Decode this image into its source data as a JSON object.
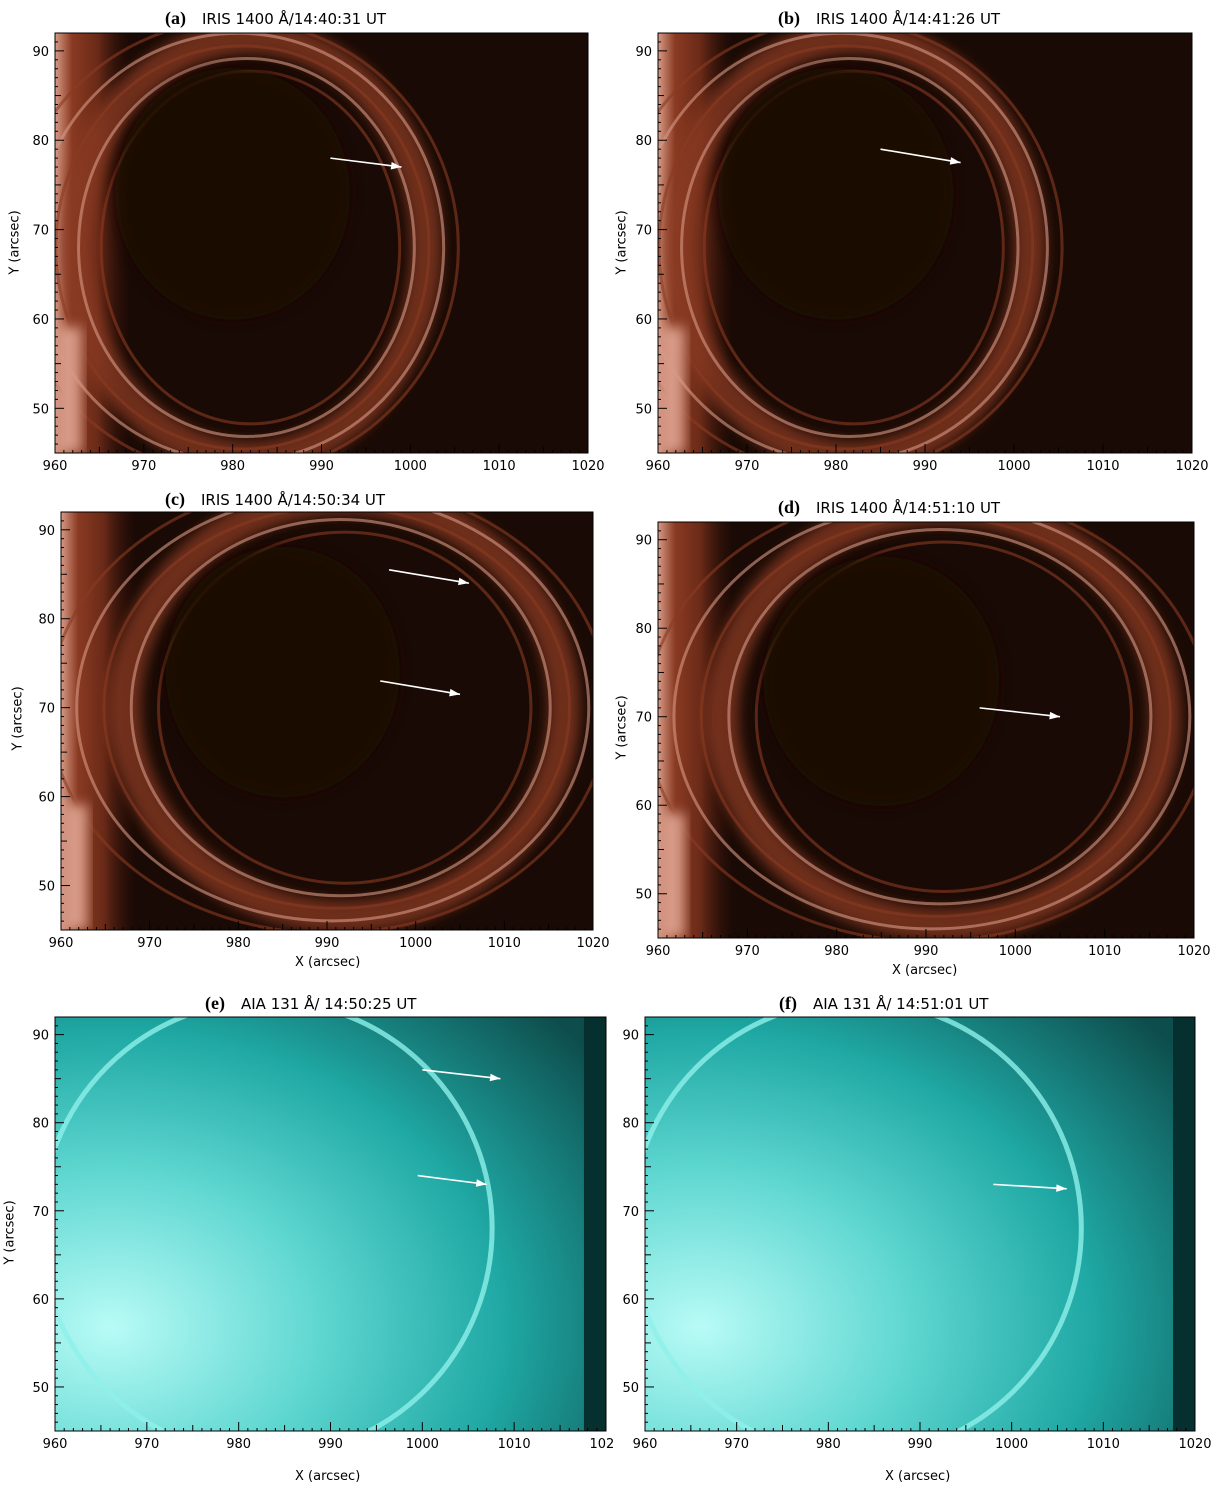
{
  "colors": {
    "iris_bg": "#1a0a05",
    "iris_dark": "#2a0d06",
    "iris_mid": "#8a3a22",
    "iris_bright": "#d79a86",
    "aia_dark": "#0d4d4c",
    "aia_mid": "#1fa8a4",
    "aia_bright": "#b8fbf6",
    "arrow": "#ffffff"
  },
  "panels": [
    {
      "label": "(a)",
      "title": "IRIS 1400 Å/14:40:31 UT",
      "xlabel": "",
      "ylabel": "Y (arcsec)",
      "type": "iris"
    },
    {
      "label": "(b)",
      "title": "IRIS 1400 Å/14:41:26 UT",
      "xlabel": "",
      "ylabel": "Y (arcsec)",
      "type": "iris"
    },
    {
      "label": "(c)",
      "title": "IRIS 1400 Å/14:50:34 UT",
      "xlabel": "X (arcsec)",
      "ylabel": "Y (arcsec)",
      "type": "iris"
    },
    {
      "label": "(d)",
      "title": "IRIS 1400 Å/14:51:10 UT",
      "xlabel": "X (arcsec)",
      "ylabel": "Y (arcsec)",
      "type": "iris"
    },
    {
      "label": "(e)",
      "title": "AIA 131 Å/ 14:50:25 UT",
      "xlabel": "X (arcsec)",
      "ylabel": "Y (arcsec)",
      "type": "aia"
    },
    {
      "label": "(f)",
      "title": "AIA 131 Å/ 14:51:01 UT",
      "xlabel": "X (arcsec)",
      "ylabel": "Y (arcsec)",
      "type": "aia"
    }
  ],
  "x_ticks": [
    "960",
    "970",
    "980",
    "990",
    "1000",
    "1010",
    "1020"
  ],
  "y_ticks": [
    "90",
    "80",
    "70",
    "60",
    "50"
  ],
  "x_range": [
    960,
    1020
  ],
  "y_range": [
    45,
    92
  ],
  "arrows": [
    [
      {
        "from": [
          991,
          78
        ],
        "to": [
          999,
          77
        ]
      }
    ],
    [
      {
        "from": [
          985,
          79
        ],
        "to": [
          994,
          77.5
        ]
      }
    ],
    [
      {
        "from": [
          997,
          85.5
        ],
        "to": [
          1006,
          84
        ]
      },
      {
        "from": [
          996,
          73
        ],
        "to": [
          1005,
          71.5
        ]
      }
    ],
    [
      {
        "from": [
          996,
          71
        ],
        "to": [
          1005,
          70
        ]
      }
    ],
    [
      {
        "from": [
          1000,
          86
        ],
        "to": [
          1008.5,
          85
        ]
      },
      {
        "from": [
          999.5,
          74
        ],
        "to": [
          1007,
          73
        ]
      }
    ],
    [
      {
        "from": [
          998,
          73
        ],
        "to": [
          1006,
          72.5
        ]
      }
    ]
  ]
}
